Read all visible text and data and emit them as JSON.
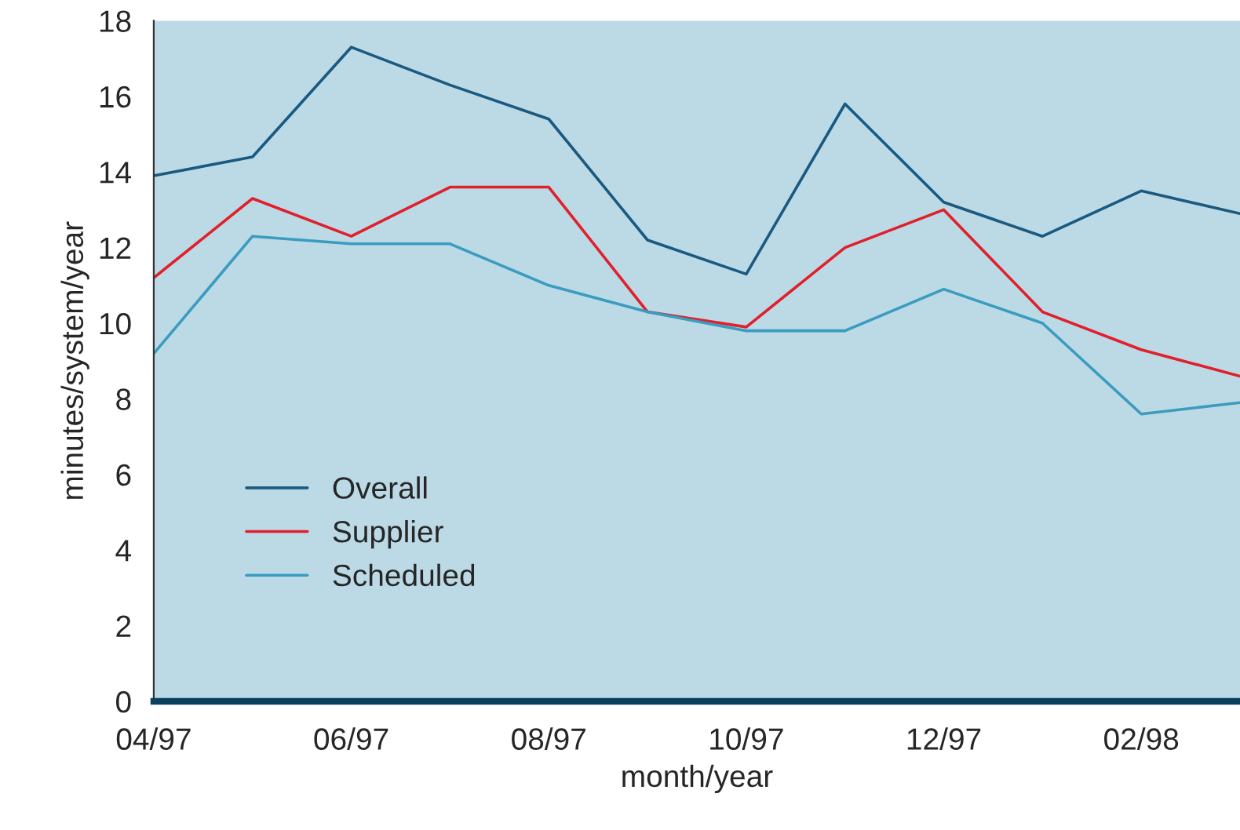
{
  "chart_data": {
    "type": "line",
    "xlabel": "month/year",
    "ylabel": "minutes/system/year",
    "categories": [
      "04/97",
      null,
      "06/97",
      null,
      "08/97",
      null,
      "10/97",
      null,
      "12/97",
      null,
      "02/98",
      null
    ],
    "series": [
      {
        "name": "Overall",
        "color": "#1a5a80",
        "values": [
          13.9,
          14.4,
          17.3,
          16.3,
          15.4,
          12.2,
          11.3,
          15.8,
          13.2,
          12.3,
          13.5,
          12.9
        ]
      },
      {
        "name": "Supplier",
        "color": "#e0202a",
        "values": [
          11.2,
          13.3,
          12.3,
          13.6,
          13.6,
          10.3,
          9.9,
          12.0,
          13.0,
          10.3,
          9.3,
          8.6
        ]
      },
      {
        "name": "Scheduled",
        "color": "#3a9cbf",
        "values": [
          9.2,
          12.3,
          12.1,
          12.1,
          11.0,
          10.3,
          9.8,
          9.8,
          10.9,
          10.0,
          7.6,
          7.9
        ]
      }
    ],
    "ylim": [
      0,
      18
    ],
    "yticks": [
      0,
      2,
      4,
      6,
      8,
      10,
      12,
      14,
      16,
      18
    ],
    "grid": false,
    "legend": "bottom left",
    "marker": "none",
    "line_style": "solid"
  }
}
